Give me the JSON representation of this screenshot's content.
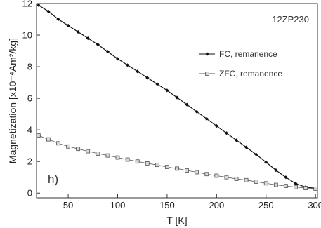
{
  "chart_data": {
    "type": "line",
    "xlabel": "T [K]",
    "ylabel": "Magnetization [x10⁻⁴Am²/kg]",
    "xlim": [
      18,
      302
    ],
    "ylim": [
      -0.3,
      12
    ],
    "x_ticks": [
      "50",
      "100",
      "150",
      "200",
      "250",
      "300"
    ],
    "y_ticks": [
      "0",
      "2",
      "4",
      "6",
      "8",
      "10",
      "12"
    ],
    "sample_label": "12ZP230",
    "panel_label": "h)",
    "legend_position": "right",
    "grid": false,
    "series": [
      {
        "name": "FC, remanence",
        "marker": "filled-diamond",
        "color": "#111111",
        "x": [
          20,
          30,
          40,
          50,
          60,
          70,
          80,
          90,
          100,
          110,
          120,
          130,
          140,
          150,
          160,
          170,
          180,
          190,
          200,
          210,
          220,
          230,
          240,
          250,
          260,
          270,
          280,
          290,
          300
        ],
        "y": [
          11.9,
          11.5,
          11.0,
          10.6,
          10.2,
          9.8,
          9.4,
          8.95,
          8.5,
          8.1,
          7.7,
          7.3,
          6.9,
          6.5,
          6.05,
          5.6,
          5.15,
          4.7,
          4.25,
          3.8,
          3.35,
          2.9,
          2.45,
          1.95,
          1.45,
          1.0,
          0.6,
          0.38,
          0.3
        ]
      },
      {
        "name": "ZFC, remanence",
        "marker": "open-square",
        "color": "#555555",
        "x": [
          20,
          30,
          40,
          50,
          60,
          70,
          80,
          90,
          100,
          110,
          120,
          130,
          140,
          150,
          160,
          170,
          180,
          190,
          200,
          210,
          220,
          230,
          240,
          250,
          260,
          270,
          280,
          290,
          300
        ],
        "y": [
          3.65,
          3.4,
          3.15,
          2.95,
          2.8,
          2.65,
          2.5,
          2.38,
          2.25,
          2.12,
          2.0,
          1.88,
          1.78,
          1.65,
          1.55,
          1.43,
          1.32,
          1.2,
          1.1,
          1.0,
          0.9,
          0.82,
          0.72,
          0.62,
          0.52,
          0.45,
          0.38,
          0.32,
          0.28
        ]
      }
    ]
  }
}
